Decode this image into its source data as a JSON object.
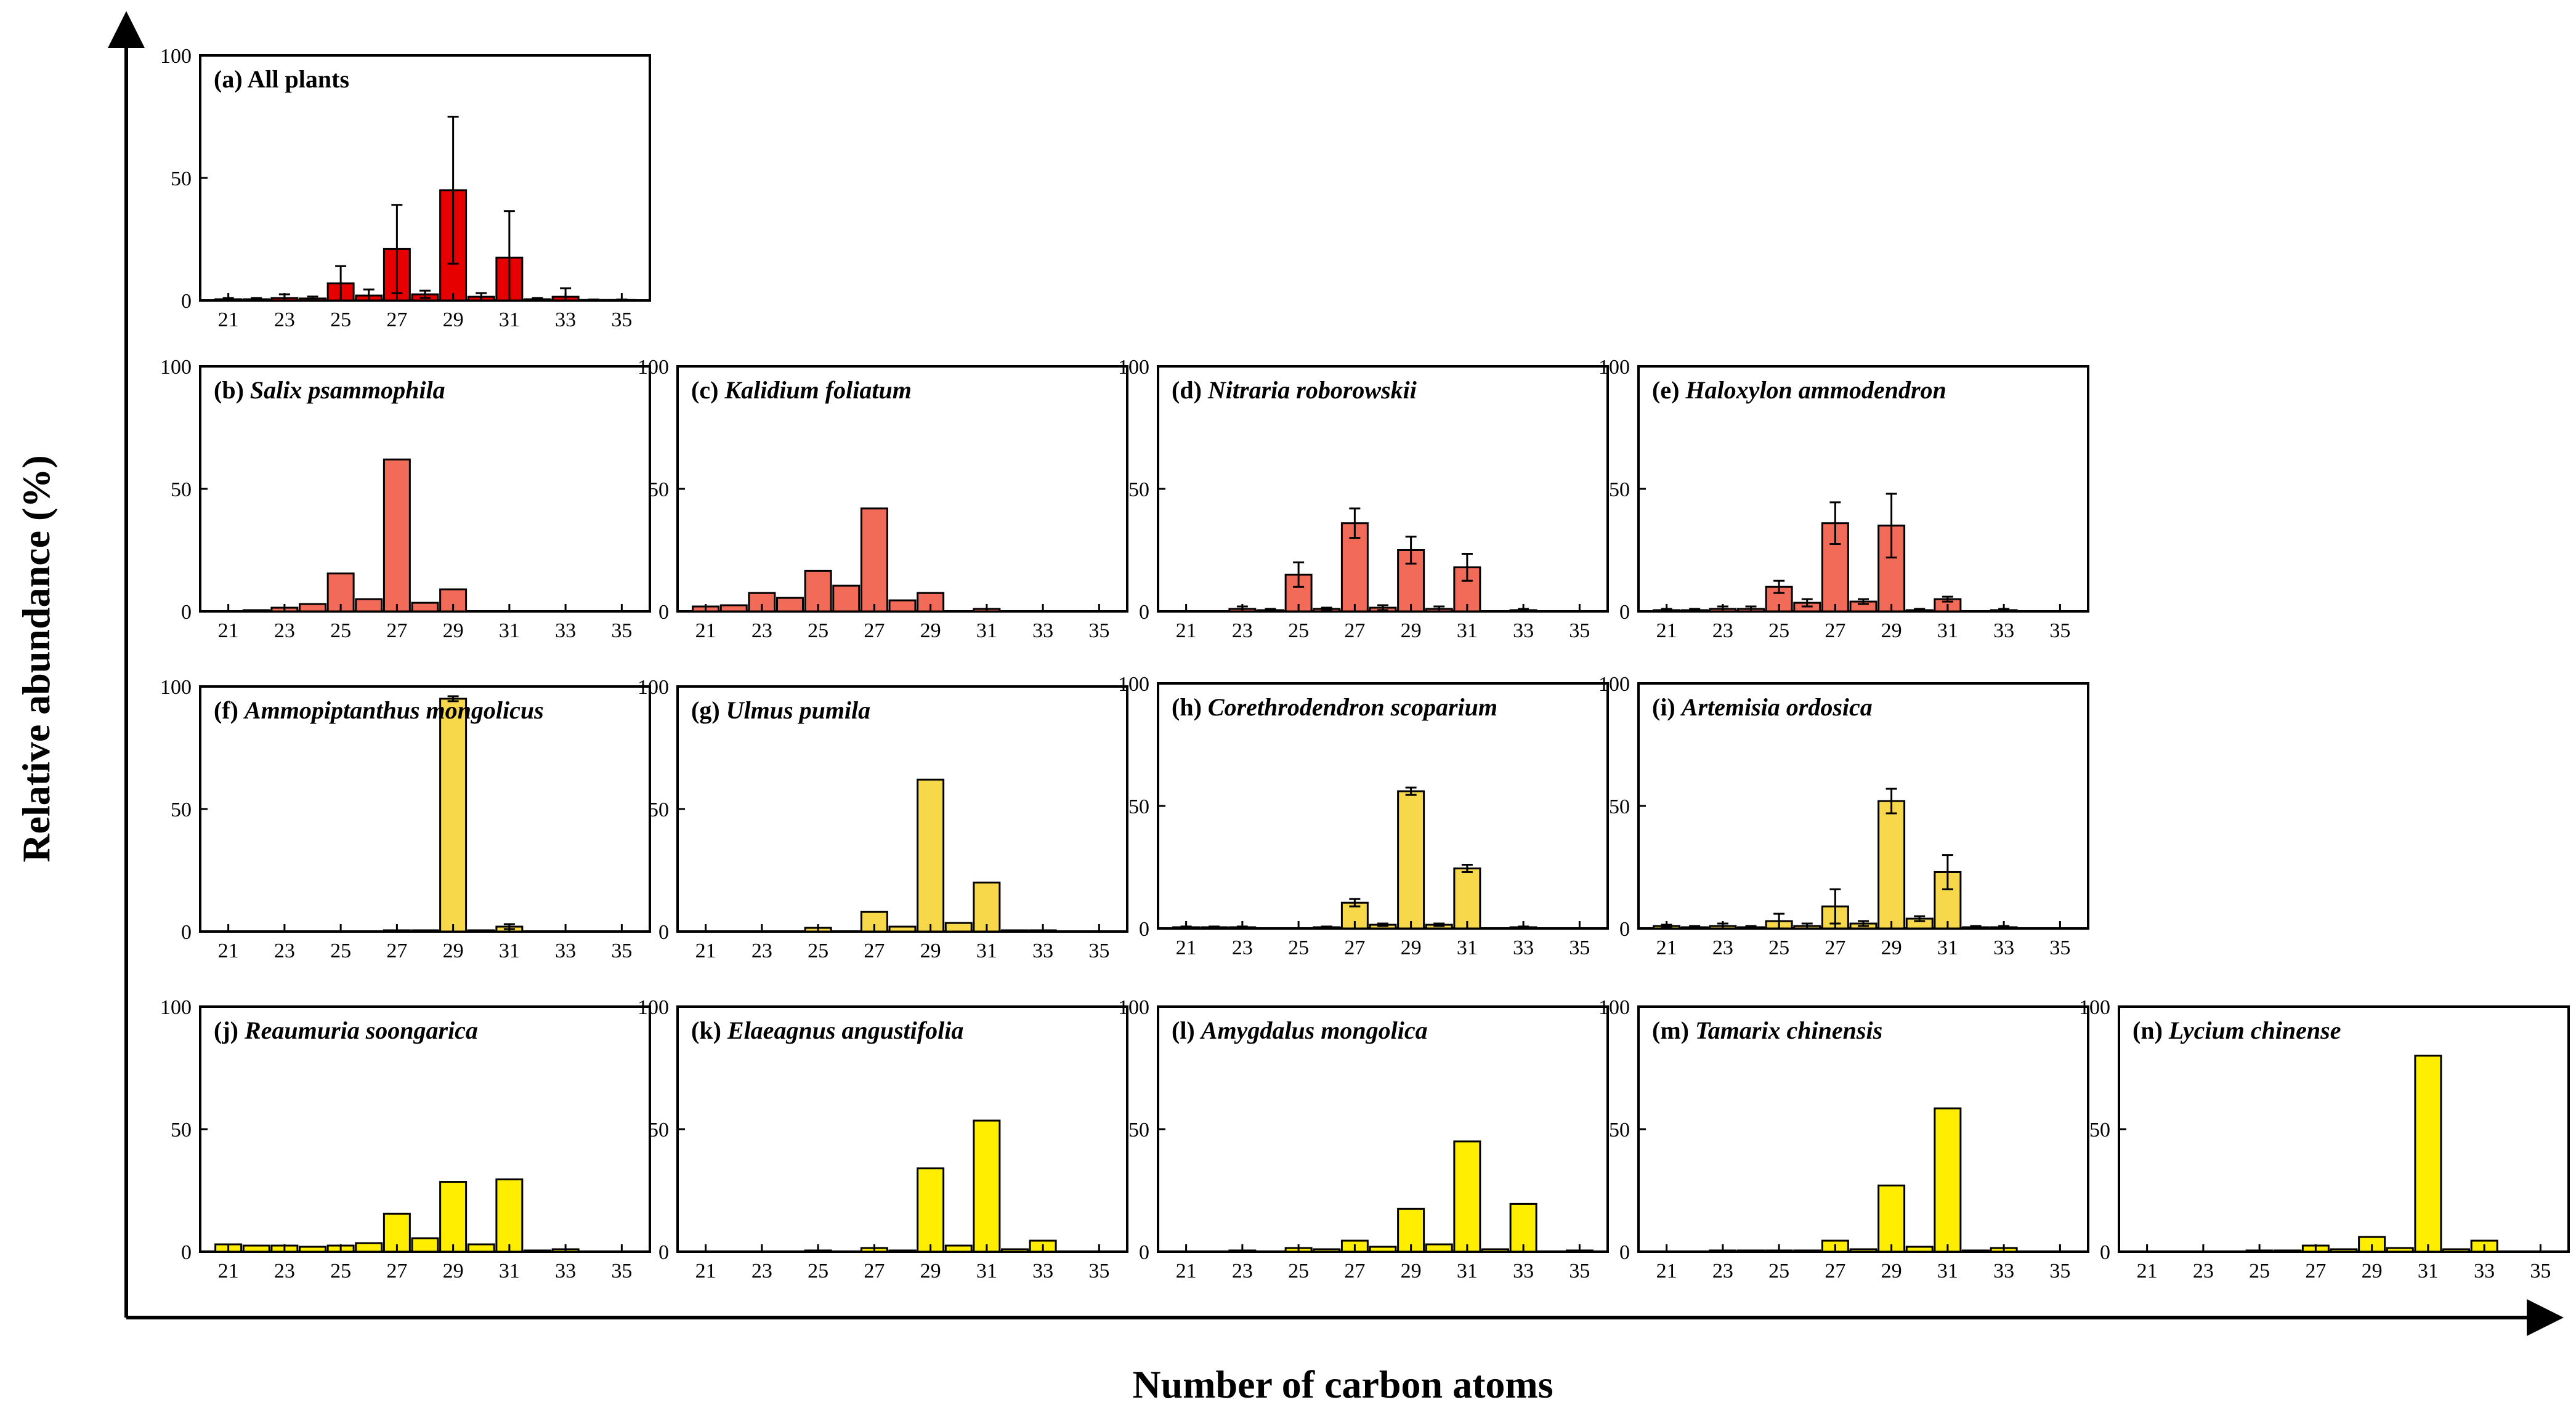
{
  "figure": {
    "ylabel": "Relative abundance (%)",
    "xlabel": "Number of carbon atoms"
  },
  "colors": {
    "red": "#e60000",
    "salmon": "#f26a58",
    "gold": "#f7d84a",
    "yellow": "#ffee00",
    "stroke": "#000000"
  },
  "chart_data": [
    {
      "type": "bar",
      "id": "a",
      "label": "(a)",
      "name": "All plants",
      "italic": false,
      "color": "red",
      "x": [
        21,
        22,
        23,
        24,
        25,
        26,
        27,
        28,
        29,
        30,
        31,
        32,
        33,
        34,
        35
      ],
      "values": [
        0.5,
        0.5,
        1,
        0.8,
        7,
        2,
        21,
        2.5,
        45,
        1.5,
        17.5,
        0.5,
        1.5,
        0.2,
        0.2
      ],
      "errors": [
        0.5,
        0.5,
        1.5,
        0.8,
        7,
        2.5,
        18,
        1.5,
        30,
        1.5,
        19,
        0.5,
        3.5,
        0.2,
        0.2
      ],
      "xticks": [
        "21",
        "23",
        "25",
        "27",
        "29",
        "31",
        "33",
        "35"
      ],
      "yticks": [
        "0",
        "50",
        "100"
      ],
      "ylim": [
        0,
        100
      ]
    },
    {
      "type": "bar",
      "id": "b",
      "label": "(b)",
      "name": "Salix psammophila",
      "italic": true,
      "color": "salmon",
      "x": [
        21,
        22,
        23,
        24,
        25,
        26,
        27,
        28,
        29,
        30,
        31,
        32,
        33,
        34,
        35
      ],
      "values": [
        0,
        0.5,
        1.5,
        3,
        15.5,
        5,
        62,
        3.5,
        9,
        0,
        0,
        0,
        0,
        0,
        0
      ],
      "xticks": [
        "21",
        "23",
        "25",
        "27",
        "29",
        "31",
        "33",
        "35"
      ],
      "yticks": [
        "0",
        "50",
        "100"
      ],
      "ylim": [
        0,
        100
      ]
    },
    {
      "type": "bar",
      "id": "c",
      "label": "(c)",
      "name": "Kalidium foliatum",
      "italic": true,
      "color": "salmon",
      "x": [
        21,
        22,
        23,
        24,
        25,
        26,
        27,
        28,
        29,
        30,
        31,
        32,
        33,
        34,
        35
      ],
      "values": [
        2,
        2.5,
        7.5,
        5.5,
        16.5,
        10.5,
        42,
        4.5,
        7.5,
        0,
        1,
        0,
        0,
        0,
        0
      ],
      "xticks": [
        "21",
        "23",
        "25",
        "27",
        "29",
        "31",
        "33",
        "35"
      ],
      "yticks": [
        "0",
        "50",
        "100"
      ],
      "ylim": [
        0,
        100
      ]
    },
    {
      "type": "bar",
      "id": "d",
      "label": "(d)",
      "name": "Nitraria roborowskii",
      "italic": true,
      "color": "salmon",
      "x": [
        21,
        22,
        23,
        24,
        25,
        26,
        27,
        28,
        29,
        30,
        31,
        32,
        33,
        34,
        35
      ],
      "values": [
        0,
        0,
        1,
        0.5,
        15,
        1,
        36,
        1.5,
        25,
        1,
        18,
        0,
        0.5,
        0,
        0
      ],
      "errors": [
        0,
        0,
        1,
        0.5,
        5,
        0.5,
        6,
        1,
        5.5,
        1,
        5.5,
        0,
        0.5,
        0,
        0
      ],
      "xticks": [
        "21",
        "23",
        "25",
        "27",
        "29",
        "31",
        "33",
        "35"
      ],
      "yticks": [
        "0",
        "50",
        "100"
      ],
      "ylim": [
        0,
        100
      ]
    },
    {
      "type": "bar",
      "id": "e",
      "label": "(e)",
      "name": "Haloxylon ammodendron",
      "italic": true,
      "color": "salmon",
      "x": [
        21,
        22,
        23,
        24,
        25,
        26,
        27,
        28,
        29,
        30,
        31,
        32,
        33,
        34,
        35
      ],
      "values": [
        0.5,
        0.5,
        1,
        1,
        10,
        3.5,
        36,
        4,
        35,
        0.5,
        5,
        0,
        0.5,
        0,
        0
      ],
      "errors": [
        0.5,
        0.5,
        1,
        1,
        2.5,
        1.5,
        8.5,
        1,
        13,
        0.5,
        1,
        0,
        0.5,
        0,
        0
      ],
      "xticks": [
        "21",
        "23",
        "25",
        "27",
        "29",
        "31",
        "33",
        "35"
      ],
      "yticks": [
        "0",
        "50",
        "100"
      ],
      "ylim": [
        0,
        100
      ]
    },
    {
      "type": "bar",
      "id": "f",
      "label": "(f)",
      "name": "Ammopiptanthus mongolicus",
      "italic": true,
      "color": "gold",
      "x": [
        21,
        22,
        23,
        24,
        25,
        26,
        27,
        28,
        29,
        30,
        31,
        32,
        33,
        34,
        35
      ],
      "values": [
        0,
        0,
        0,
        0,
        0,
        0,
        0.5,
        0.5,
        95,
        0.5,
        2,
        0,
        0,
        0,
        0
      ],
      "errors": [
        0,
        0,
        0,
        0,
        0,
        0,
        0,
        0,
        1,
        0,
        1,
        0,
        0,
        0,
        0
      ],
      "xticks": [
        "21",
        "23",
        "25",
        "27",
        "29",
        "31",
        "33",
        "35"
      ],
      "yticks": [
        "0",
        "50",
        "100"
      ],
      "ylim": [
        0,
        100
      ]
    },
    {
      "type": "bar",
      "id": "g",
      "label": "(g)",
      "name": "Ulmus pumila",
      "italic": true,
      "color": "gold",
      "x": [
        21,
        22,
        23,
        24,
        25,
        26,
        27,
        28,
        29,
        30,
        31,
        32,
        33,
        34,
        35
      ],
      "values": [
        0,
        0,
        0,
        0,
        1.5,
        0,
        8,
        2,
        62,
        3.5,
        20,
        0.5,
        0.5,
        0,
        0
      ],
      "xticks": [
        "21",
        "23",
        "25",
        "27",
        "29",
        "31",
        "33",
        "35"
      ],
      "yticks": [
        "0",
        "50",
        "100"
      ],
      "ylim": [
        0,
        100
      ]
    },
    {
      "type": "bar",
      "id": "h",
      "label": "(h)",
      "name": "Corethrodendron scoparium",
      "italic": true,
      "color": "gold",
      "x": [
        21,
        22,
        23,
        24,
        25,
        26,
        27,
        28,
        29,
        30,
        31,
        32,
        33,
        34,
        35
      ],
      "values": [
        0.5,
        0.5,
        0.5,
        0,
        0,
        0.5,
        10.5,
        1.5,
        56,
        1.5,
        24.5,
        0,
        0.5,
        0,
        0
      ],
      "errors": [
        0.3,
        0.3,
        0.3,
        0,
        0,
        0.3,
        1.5,
        0.5,
        1.5,
        0.5,
        1.5,
        0,
        0.3,
        0,
        0
      ],
      "xticks": [
        "21",
        "23",
        "25",
        "27",
        "29",
        "31",
        "33",
        "35"
      ],
      "yticks": [
        "0",
        "50",
        "100"
      ],
      "ylim": [
        0,
        100
      ]
    },
    {
      "type": "bar",
      "id": "i",
      "label": "(i)",
      "name": "Artemisia ordosica",
      "italic": true,
      "color": "gold",
      "x": [
        21,
        22,
        23,
        24,
        25,
        26,
        27,
        28,
        29,
        30,
        31,
        32,
        33,
        34,
        35
      ],
      "values": [
        1,
        0.5,
        1,
        0.5,
        3,
        1,
        9,
        2,
        52,
        4,
        23,
        0.5,
        0.5,
        0,
        0
      ],
      "errors": [
        0.5,
        0.5,
        1,
        0.5,
        3,
        1,
        7,
        1,
        5,
        1,
        7,
        0.5,
        0.5,
        0,
        0
      ],
      "xticks": [
        "21",
        "23",
        "25",
        "27",
        "29",
        "31",
        "33",
        "35"
      ],
      "yticks": [
        "0",
        "50",
        "100"
      ],
      "ylim": [
        0,
        100
      ]
    },
    {
      "type": "bar",
      "id": "j",
      "label": "(j)",
      "name": "Reaumuria soongarica",
      "italic": true,
      "color": "yellow",
      "x": [
        21,
        22,
        23,
        24,
        25,
        26,
        27,
        28,
        29,
        30,
        31,
        32,
        33,
        34,
        35
      ],
      "values": [
        3,
        2.5,
        2.5,
        2,
        2.5,
        3.5,
        15.5,
        5.5,
        28.5,
        3,
        29.5,
        0.5,
        1,
        0,
        0
      ],
      "xticks": [
        "21",
        "23",
        "25",
        "27",
        "29",
        "31",
        "33",
        "35"
      ],
      "yticks": [
        "0",
        "50",
        "100"
      ],
      "ylim": [
        0,
        100
      ]
    },
    {
      "type": "bar",
      "id": "k",
      "label": "(k)",
      "name": "Elaeagnus angustifolia",
      "italic": true,
      "color": "yellow",
      "x": [
        21,
        22,
        23,
        24,
        25,
        26,
        27,
        28,
        29,
        30,
        31,
        32,
        33,
        34,
        35
      ],
      "values": [
        0,
        0,
        0,
        0,
        0.5,
        0,
        1.5,
        0.5,
        34,
        2.5,
        53.5,
        1,
        4.5,
        0,
        0
      ],
      "xticks": [
        "21",
        "23",
        "25",
        "27",
        "29",
        "31",
        "33",
        "35"
      ],
      "yticks": [
        "0",
        "50",
        "100"
      ],
      "ylim": [
        0,
        100
      ]
    },
    {
      "type": "bar",
      "id": "l",
      "label": "(l)",
      "name": "Amygdalus mongolica",
      "italic": true,
      "color": "yellow",
      "x": [
        21,
        22,
        23,
        24,
        25,
        26,
        27,
        28,
        29,
        30,
        31,
        32,
        33,
        34,
        35
      ],
      "values": [
        0,
        0,
        0.5,
        0,
        1.5,
        1,
        4.5,
        2,
        17.5,
        3,
        45,
        1,
        19.5,
        0,
        0.5
      ],
      "xticks": [
        "21",
        "23",
        "25",
        "27",
        "29",
        "31",
        "33",
        "35"
      ],
      "yticks": [
        "0",
        "50",
        "100"
      ],
      "ylim": [
        0,
        100
      ]
    },
    {
      "type": "bar",
      "id": "m",
      "label": "(m)",
      "name": "Tamarix chinensis",
      "italic": true,
      "color": "yellow",
      "x": [
        21,
        22,
        23,
        24,
        25,
        26,
        27,
        28,
        29,
        30,
        31,
        32,
        33,
        34,
        35
      ],
      "values": [
        0,
        0,
        0.5,
        0.5,
        0.5,
        0.5,
        4.5,
        1,
        27,
        2,
        58.5,
        0.5,
        1.5,
        0,
        0
      ],
      "xticks": [
        "21",
        "23",
        "25",
        "27",
        "29",
        "31",
        "33",
        "35"
      ],
      "yticks": [
        "0",
        "50",
        "100"
      ],
      "ylim": [
        0,
        100
      ]
    },
    {
      "type": "bar",
      "id": "n",
      "label": "(n)",
      "name": "Lycium chinense",
      "italic": true,
      "color": "yellow",
      "x": [
        21,
        22,
        23,
        24,
        25,
        26,
        27,
        28,
        29,
        30,
        31,
        32,
        33,
        34,
        35
      ],
      "values": [
        0,
        0,
        0,
        0,
        0.5,
        0.5,
        2.5,
        1,
        6,
        1.5,
        80,
        1,
        4.5,
        0,
        0
      ],
      "xticks": [
        "21",
        "23",
        "25",
        "27",
        "29",
        "31",
        "33",
        "35"
      ],
      "yticks": [
        "0",
        "50",
        "100"
      ],
      "ylim": [
        0,
        100
      ]
    }
  ]
}
